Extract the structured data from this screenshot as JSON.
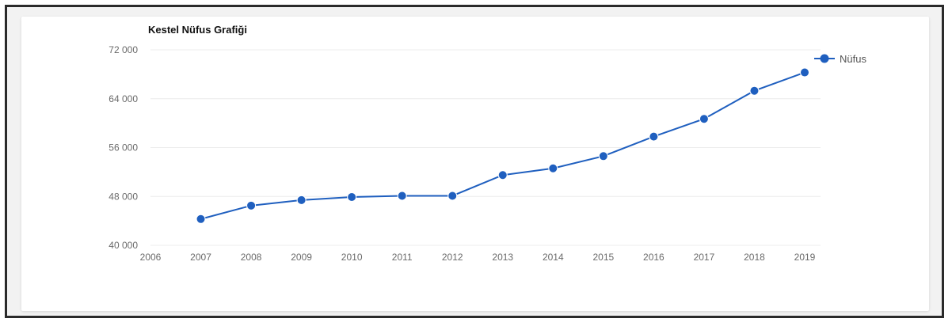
{
  "chart_data": {
    "type": "line",
    "title": "Kestel Nüfus Grafiği",
    "xlabel": "",
    "ylabel": "",
    "x": [
      "2006",
      "2007",
      "2008",
      "2009",
      "2010",
      "2011",
      "2012",
      "2013",
      "2014",
      "2015",
      "2016",
      "2017",
      "2018",
      "2019"
    ],
    "x_tick_labels": [
      "2006",
      "2007",
      "2008",
      "2009",
      "2010",
      "2011",
      "2012",
      "2013",
      "2014",
      "2015",
      "2016",
      "2017",
      "2018",
      "2019"
    ],
    "y_ticks": [
      40000,
      48000,
      56000,
      64000,
      72000
    ],
    "y_tick_labels": [
      "40 000",
      "48 000",
      "56 000",
      "64 000",
      "72 000"
    ],
    "ylim": [
      40000,
      72000
    ],
    "grid": true,
    "legend_position": "top-right",
    "series": [
      {
        "name": "Nüfus",
        "color": "#1f5fbf",
        "points": [
          {
            "x": "2007",
            "y": 44300
          },
          {
            "x": "2008",
            "y": 46500
          },
          {
            "x": "2009",
            "y": 47400
          },
          {
            "x": "2010",
            "y": 47900
          },
          {
            "x": "2011",
            "y": 48100
          },
          {
            "x": "2012",
            "y": 48100
          },
          {
            "x": "2013",
            "y": 51500
          },
          {
            "x": "2014",
            "y": 52600
          },
          {
            "x": "2015",
            "y": 54600
          },
          {
            "x": "2016",
            "y": 57800
          },
          {
            "x": "2017",
            "y": 60700
          },
          {
            "x": "2018",
            "y": 65300
          },
          {
            "x": "2019",
            "y": 68300
          }
        ]
      }
    ]
  }
}
